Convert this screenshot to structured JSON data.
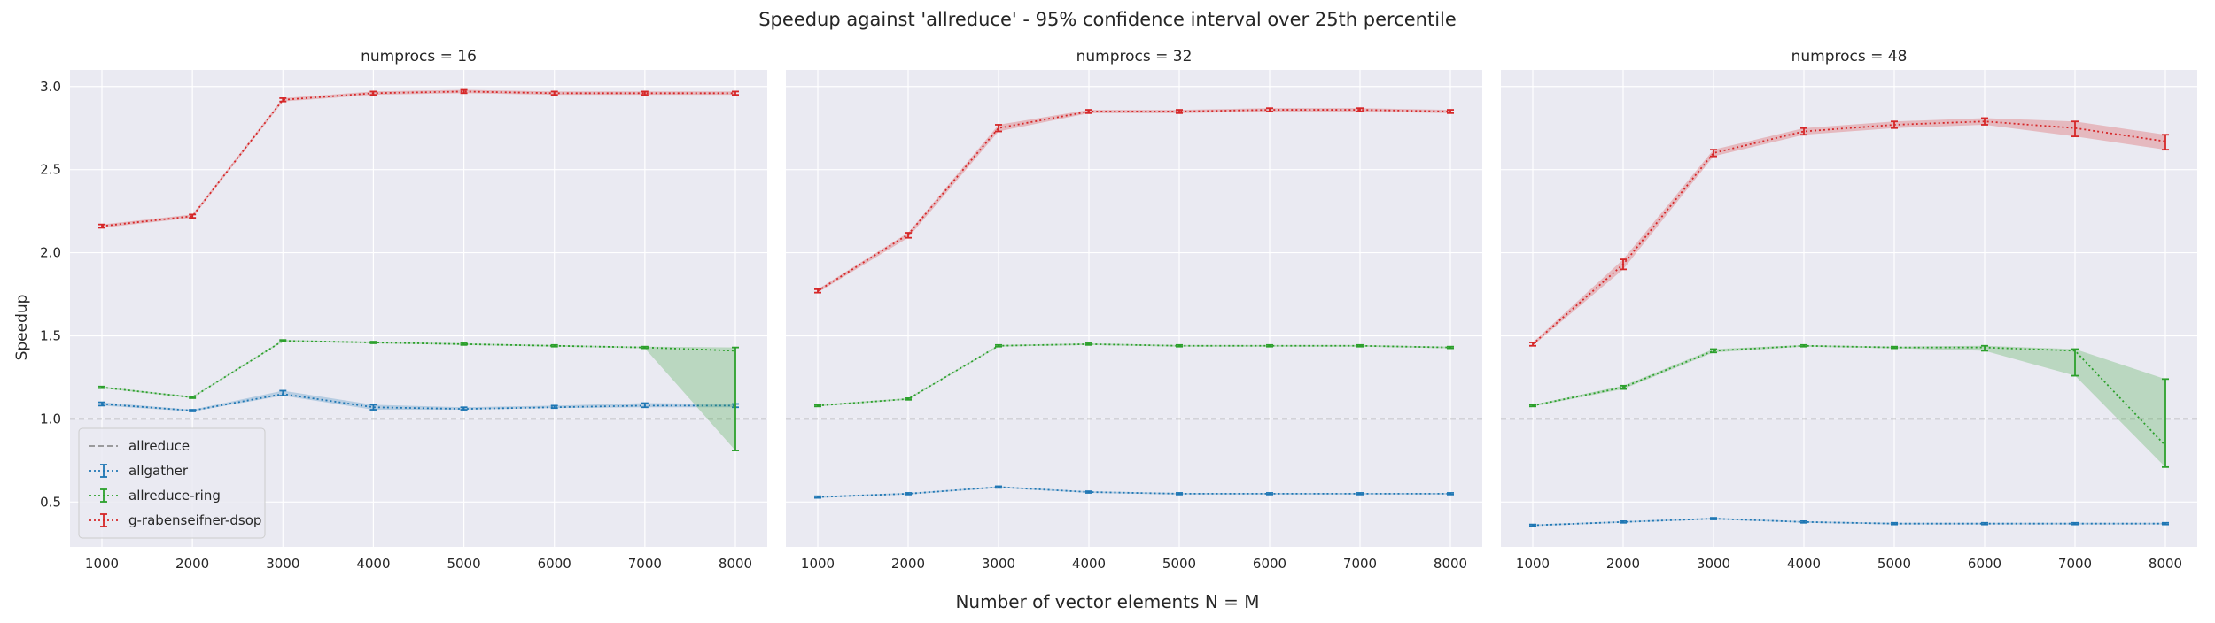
{
  "figure": {
    "suptitle": "Speedup against 'allreduce' - 95% confidence interval over 25th percentile",
    "supxlabel": "Number of vector elements N = M",
    "ylabel": "Speedup"
  },
  "colors": {
    "background": "#eaeaf2",
    "grid": "#ffffff",
    "allreduce": "#808080",
    "allgather": "#1f77b4",
    "allreduce-ring": "#2ca02c",
    "g-rabenseifner-dsop": "#d62728"
  },
  "legend": {
    "placement": "lower-left of first panel",
    "entries": [
      "allreduce",
      "allgather",
      "allreduce-ring",
      "g-rabenseifner-dsop"
    ]
  },
  "chart_data": [
    {
      "type": "line",
      "title": "numprocs = 16",
      "xlabel": "",
      "ylabel": "Speedup",
      "x": [
        1000,
        2000,
        3000,
        4000,
        5000,
        6000,
        7000,
        8000
      ],
      "xticks": [
        1000,
        2000,
        3000,
        4000,
        5000,
        6000,
        7000,
        8000
      ],
      "yticks": [
        0.5,
        1.0,
        1.5,
        2.0,
        2.5,
        3.0
      ],
      "ylim": [
        0.23,
        3.1
      ],
      "grid": true,
      "reference_line": {
        "name": "allreduce",
        "y": 1.0,
        "style": "dashed"
      },
      "series": [
        {
          "name": "allgather",
          "values": [
            1.09,
            1.05,
            1.15,
            1.07,
            1.06,
            1.07,
            1.08,
            1.08
          ],
          "lower": [
            1.08,
            1.045,
            1.14,
            1.055,
            1.055,
            1.065,
            1.07,
            1.07
          ],
          "upper": [
            1.1,
            1.055,
            1.17,
            1.085,
            1.07,
            1.08,
            1.095,
            1.09
          ]
        },
        {
          "name": "allreduce-ring",
          "values": [
            1.19,
            1.13,
            1.47,
            1.46,
            1.45,
            1.44,
            1.43,
            1.41
          ],
          "lower": [
            1.185,
            1.125,
            1.465,
            1.455,
            1.445,
            1.435,
            1.425,
            0.81
          ],
          "upper": [
            1.195,
            1.135,
            1.475,
            1.465,
            1.455,
            1.445,
            1.435,
            1.43
          ]
        },
        {
          "name": "g-rabenseifner-dsop",
          "values": [
            2.16,
            2.22,
            2.92,
            2.96,
            2.97,
            2.96,
            2.96,
            2.96
          ],
          "lower": [
            2.15,
            2.21,
            2.91,
            2.95,
            2.96,
            2.95,
            2.95,
            2.95
          ],
          "upper": [
            2.17,
            2.23,
            2.93,
            2.97,
            2.98,
            2.97,
            2.97,
            2.97
          ]
        }
      ]
    },
    {
      "type": "line",
      "title": "numprocs = 32",
      "xlabel": "",
      "ylabel": "",
      "x": [
        1000,
        2000,
        3000,
        4000,
        5000,
        6000,
        7000,
        8000
      ],
      "xticks": [
        1000,
        2000,
        3000,
        4000,
        5000,
        6000,
        7000,
        8000
      ],
      "ylim": [
        0.23,
        3.1
      ],
      "grid": true,
      "reference_line": {
        "name": "allreduce",
        "y": 1.0,
        "style": "dashed"
      },
      "series": [
        {
          "name": "allgather",
          "values": [
            0.53,
            0.55,
            0.59,
            0.56,
            0.55,
            0.55,
            0.55,
            0.55
          ],
          "lower": [
            0.525,
            0.545,
            0.585,
            0.555,
            0.545,
            0.545,
            0.545,
            0.545
          ],
          "upper": [
            0.535,
            0.555,
            0.595,
            0.565,
            0.555,
            0.555,
            0.555,
            0.555
          ]
        },
        {
          "name": "allreduce-ring",
          "values": [
            1.08,
            1.12,
            1.44,
            1.45,
            1.44,
            1.44,
            1.44,
            1.43
          ],
          "lower": [
            1.075,
            1.115,
            1.435,
            1.445,
            1.435,
            1.435,
            1.435,
            1.425
          ],
          "upper": [
            1.085,
            1.125,
            1.445,
            1.455,
            1.445,
            1.445,
            1.445,
            1.435
          ]
        },
        {
          "name": "g-rabenseifner-dsop",
          "values": [
            1.77,
            2.11,
            2.75,
            2.85,
            2.85,
            2.86,
            2.86,
            2.85
          ],
          "lower": [
            1.76,
            2.09,
            2.73,
            2.84,
            2.84,
            2.85,
            2.85,
            2.84
          ],
          "upper": [
            1.78,
            2.12,
            2.77,
            2.86,
            2.86,
            2.87,
            2.87,
            2.86
          ]
        }
      ]
    },
    {
      "type": "line",
      "title": "numprocs = 48",
      "xlabel": "",
      "ylabel": "",
      "x": [
        1000,
        2000,
        3000,
        4000,
        5000,
        6000,
        7000,
        8000
      ],
      "xticks": [
        1000,
        2000,
        3000,
        4000,
        5000,
        6000,
        7000,
        8000
      ],
      "ylim": [
        0.23,
        3.1
      ],
      "grid": true,
      "reference_line": {
        "name": "allreduce",
        "y": 1.0,
        "style": "dashed"
      },
      "series": [
        {
          "name": "allgather",
          "values": [
            0.36,
            0.38,
            0.4,
            0.38,
            0.37,
            0.37,
            0.37,
            0.37
          ],
          "lower": [
            0.355,
            0.375,
            0.395,
            0.375,
            0.365,
            0.365,
            0.365,
            0.365
          ],
          "upper": [
            0.365,
            0.385,
            0.405,
            0.385,
            0.375,
            0.375,
            0.375,
            0.375
          ]
        },
        {
          "name": "allreduce-ring",
          "values": [
            1.08,
            1.19,
            1.41,
            1.44,
            1.43,
            1.43,
            1.41,
            0.84
          ],
          "lower": [
            1.075,
            1.18,
            1.4,
            1.435,
            1.425,
            1.41,
            1.26,
            0.71
          ],
          "upper": [
            1.085,
            1.2,
            1.42,
            1.445,
            1.435,
            1.44,
            1.42,
            1.24
          ]
        },
        {
          "name": "g-rabenseifner-dsop",
          "values": [
            1.45,
            1.93,
            2.6,
            2.73,
            2.77,
            2.79,
            2.75,
            2.67
          ],
          "lower": [
            1.44,
            1.9,
            2.58,
            2.71,
            2.75,
            2.77,
            2.7,
            2.62
          ],
          "upper": [
            1.46,
            1.96,
            2.62,
            2.75,
            2.79,
            2.81,
            2.79,
            2.71
          ]
        }
      ]
    }
  ]
}
